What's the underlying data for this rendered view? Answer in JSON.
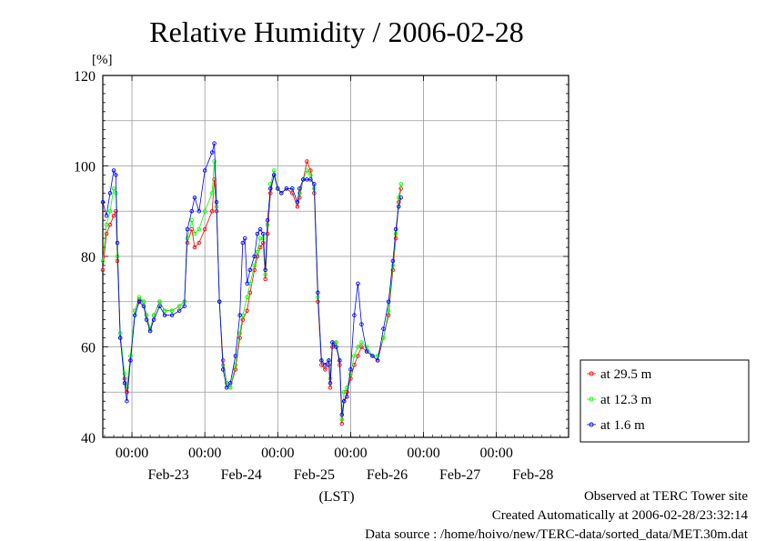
{
  "chart_data": {
    "type": "line",
    "title": "Relative Humidity / 2006-02-28",
    "ylabel": "[%]",
    "xlabel": "(LST)",
    "ylim": [
      40,
      120
    ],
    "yticks": [
      40,
      60,
      80,
      100,
      120
    ],
    "x_unit": "days since Feb-22 00:00 (LST)",
    "xlim": [
      0.6,
      6.99
    ],
    "xticks": [
      {
        "x": 1,
        "time": "00:00",
        "date": "Feb-23"
      },
      {
        "x": 2,
        "time": "00:00",
        "date": "Feb-24"
      },
      {
        "x": 3,
        "time": "00:00",
        "date": "Feb-25"
      },
      {
        "x": 4,
        "time": "00:00",
        "date": "Feb-26"
      },
      {
        "x": 5,
        "time": "00:00",
        "date": "Feb-27"
      },
      {
        "x": 6,
        "time": "00:00",
        "date": "Feb-28"
      }
    ],
    "grid": true,
    "legend_position": "right",
    "series": [
      {
        "name": "at 29.5 m",
        "color": "#ff0000",
        "points": [
          [
            0.6,
            77
          ],
          [
            0.65,
            85
          ],
          [
            0.7,
            87
          ],
          [
            0.75,
            89
          ],
          [
            0.78,
            90
          ],
          [
            0.8,
            79
          ],
          [
            0.84,
            62
          ],
          [
            0.9,
            53
          ],
          [
            0.93,
            50
          ],
          [
            0.98,
            57
          ],
          [
            1.04,
            68
          ],
          [
            1.1,
            70.5
          ],
          [
            1.16,
            70
          ],
          [
            1.2,
            67
          ],
          [
            1.25,
            63.5
          ],
          [
            1.3,
            67
          ],
          [
            1.38,
            70
          ],
          [
            1.45,
            68
          ],
          [
            1.55,
            68
          ],
          [
            1.65,
            69
          ],
          [
            1.72,
            70
          ],
          [
            1.76,
            83
          ],
          [
            1.82,
            86
          ],
          [
            1.86,
            82
          ],
          [
            1.92,
            83
          ],
          [
            2.0,
            86
          ],
          [
            2.1,
            90
          ],
          [
            2.13,
            97
          ],
          [
            2.16,
            90
          ],
          [
            2.2,
            70
          ],
          [
            2.25,
            57
          ],
          [
            2.3,
            52
          ],
          [
            2.35,
            51
          ],
          [
            2.42,
            55
          ],
          [
            2.48,
            62
          ],
          [
            2.52,
            66
          ],
          [
            2.58,
            68
          ],
          [
            2.62,
            72
          ],
          [
            2.68,
            77
          ],
          [
            2.72,
            80
          ],
          [
            2.76,
            82
          ],
          [
            2.8,
            83
          ],
          [
            2.83,
            75
          ],
          [
            2.86,
            85
          ],
          [
            2.9,
            94
          ],
          [
            2.95,
            98
          ],
          [
            3.0,
            95
          ],
          [
            3.05,
            94
          ],
          [
            3.12,
            95
          ],
          [
            3.2,
            94
          ],
          [
            3.27,
            91
          ],
          [
            3.3,
            93
          ],
          [
            3.35,
            97
          ],
          [
            3.4,
            101
          ],
          [
            3.45,
            99
          ],
          [
            3.5,
            94
          ],
          [
            3.55,
            70
          ],
          [
            3.6,
            56
          ],
          [
            3.65,
            55
          ],
          [
            3.7,
            56
          ],
          [
            3.72,
            51
          ],
          [
            3.75,
            60
          ],
          [
            3.8,
            61
          ],
          [
            3.85,
            56
          ],
          [
            3.88,
            43
          ],
          [
            3.91,
            48
          ],
          [
            3.95,
            50
          ],
          [
            4.0,
            53
          ],
          [
            4.05,
            56
          ],
          [
            4.1,
            58
          ],
          [
            4.15,
            60
          ],
          [
            4.22,
            59
          ],
          [
            4.3,
            58
          ],
          [
            4.37,
            57
          ],
          [
            4.45,
            62
          ],
          [
            4.52,
            67
          ],
          [
            4.58,
            77
          ],
          [
            4.62,
            84
          ],
          [
            4.66,
            92
          ],
          [
            4.69,
            95
          ]
        ]
      },
      {
        "name": "at 12.3 m",
        "color": "#00ff00",
        "points": [
          [
            0.6,
            79
          ],
          [
            0.65,
            87
          ],
          [
            0.7,
            90
          ],
          [
            0.75,
            95
          ],
          [
            0.78,
            94
          ],
          [
            0.8,
            80
          ],
          [
            0.84,
            63
          ],
          [
            0.9,
            54
          ],
          [
            0.93,
            51
          ],
          [
            0.98,
            58
          ],
          [
            1.04,
            68
          ],
          [
            1.1,
            71
          ],
          [
            1.16,
            70
          ],
          [
            1.2,
            67
          ],
          [
            1.25,
            64
          ],
          [
            1.3,
            67
          ],
          [
            1.38,
            70
          ],
          [
            1.45,
            68
          ],
          [
            1.55,
            68
          ],
          [
            1.65,
            69
          ],
          [
            1.72,
            70
          ],
          [
            1.76,
            84
          ],
          [
            1.82,
            88
          ],
          [
            1.86,
            85
          ],
          [
            1.92,
            86
          ],
          [
            2.0,
            90
          ],
          [
            2.1,
            94
          ],
          [
            2.13,
            101
          ],
          [
            2.16,
            91
          ],
          [
            2.2,
            70
          ],
          [
            2.25,
            56
          ],
          [
            2.3,
            52
          ],
          [
            2.35,
            51
          ],
          [
            2.42,
            56
          ],
          [
            2.48,
            63
          ],
          [
            2.52,
            67
          ],
          [
            2.58,
            71
          ],
          [
            2.62,
            74
          ],
          [
            2.68,
            78
          ],
          [
            2.72,
            81
          ],
          [
            2.76,
            84
          ],
          [
            2.8,
            84
          ],
          [
            2.83,
            76
          ],
          [
            2.86,
            87
          ],
          [
            2.9,
            96
          ],
          [
            2.95,
            99
          ],
          [
            3.0,
            95
          ],
          [
            3.05,
            94
          ],
          [
            3.12,
            95
          ],
          [
            3.2,
            95
          ],
          [
            3.27,
            92
          ],
          [
            3.3,
            94
          ],
          [
            3.35,
            97
          ],
          [
            3.4,
            99
          ],
          [
            3.45,
            98
          ],
          [
            3.5,
            95
          ],
          [
            3.55,
            71
          ],
          [
            3.6,
            57
          ],
          [
            3.65,
            56
          ],
          [
            3.7,
            57
          ],
          [
            3.72,
            53
          ],
          [
            3.75,
            61
          ],
          [
            3.8,
            61
          ],
          [
            3.85,
            57
          ],
          [
            3.88,
            44
          ],
          [
            3.91,
            50
          ],
          [
            3.95,
            51
          ],
          [
            4.0,
            54
          ],
          [
            4.05,
            58
          ],
          [
            4.1,
            60
          ],
          [
            4.15,
            61
          ],
          [
            4.22,
            60
          ],
          [
            4.3,
            58
          ],
          [
            4.37,
            58
          ],
          [
            4.45,
            62
          ],
          [
            4.52,
            68
          ],
          [
            4.58,
            78
          ],
          [
            4.62,
            85
          ],
          [
            4.66,
            93
          ],
          [
            4.69,
            96
          ]
        ]
      },
      {
        "name": "at 1.6 m",
        "color": "#0000ff",
        "points": [
          [
            0.6,
            92
          ],
          [
            0.65,
            89
          ],
          [
            0.7,
            94
          ],
          [
            0.75,
            99
          ],
          [
            0.78,
            98
          ],
          [
            0.8,
            83
          ],
          [
            0.84,
            62
          ],
          [
            0.9,
            52
          ],
          [
            0.93,
            48
          ],
          [
            0.98,
            57
          ],
          [
            1.04,
            67
          ],
          [
            1.1,
            70
          ],
          [
            1.16,
            69
          ],
          [
            1.2,
            66
          ],
          [
            1.25,
            63.5
          ],
          [
            1.3,
            66
          ],
          [
            1.38,
            69
          ],
          [
            1.45,
            67
          ],
          [
            1.55,
            67
          ],
          [
            1.65,
            68
          ],
          [
            1.72,
            69
          ],
          [
            1.76,
            86
          ],
          [
            1.82,
            90
          ],
          [
            1.86,
            93
          ],
          [
            1.92,
            90
          ],
          [
            2.0,
            99
          ],
          [
            2.1,
            103
          ],
          [
            2.13,
            105
          ],
          [
            2.16,
            92
          ],
          [
            2.2,
            70
          ],
          [
            2.25,
            55
          ],
          [
            2.3,
            51
          ],
          [
            2.35,
            52
          ],
          [
            2.42,
            58
          ],
          [
            2.48,
            67
          ],
          [
            2.52,
            83
          ],
          [
            2.55,
            84
          ],
          [
            2.58,
            74
          ],
          [
            2.62,
            77
          ],
          [
            2.68,
            80
          ],
          [
            2.72,
            85
          ],
          [
            2.76,
            86
          ],
          [
            2.8,
            85
          ],
          [
            2.83,
            77
          ],
          [
            2.86,
            88
          ],
          [
            2.9,
            95
          ],
          [
            2.95,
            98
          ],
          [
            3.0,
            95
          ],
          [
            3.05,
            94
          ],
          [
            3.12,
            95
          ],
          [
            3.2,
            95
          ],
          [
            3.27,
            92
          ],
          [
            3.3,
            95
          ],
          [
            3.35,
            97
          ],
          [
            3.4,
            97
          ],
          [
            3.45,
            97
          ],
          [
            3.5,
            96
          ],
          [
            3.55,
            72
          ],
          [
            3.6,
            57
          ],
          [
            3.65,
            56
          ],
          [
            3.7,
            57
          ],
          [
            3.72,
            52
          ],
          [
            3.75,
            61
          ],
          [
            3.8,
            60
          ],
          [
            3.85,
            57
          ],
          [
            3.88,
            45
          ],
          [
            3.91,
            48
          ],
          [
            3.95,
            49
          ],
          [
            4.0,
            55
          ],
          [
            4.05,
            67
          ],
          [
            4.1,
            74
          ],
          [
            4.15,
            65
          ],
          [
            4.22,
            59
          ],
          [
            4.3,
            58
          ],
          [
            4.37,
            57
          ],
          [
            4.45,
            64
          ],
          [
            4.52,
            70
          ],
          [
            4.58,
            79
          ],
          [
            4.62,
            86
          ],
          [
            4.66,
            91
          ],
          [
            4.69,
            93
          ]
        ]
      }
    ]
  },
  "footer": {
    "observed": "Observed at TERC Tower site",
    "created": "Created Automatically at 2006-02-28/23:32:14",
    "source": "Data source : /home/hoivo/new/TERC-data/sorted_data/MET.30m.dat"
  }
}
